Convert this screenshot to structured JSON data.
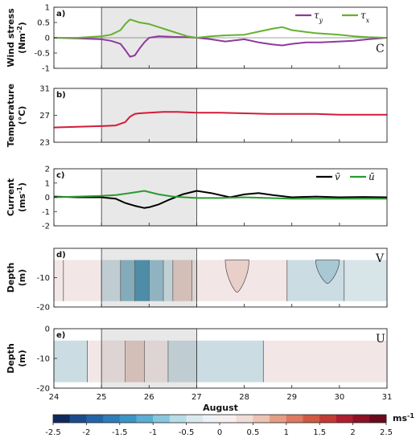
{
  "chart_data": [
    {
      "type": "line",
      "panel_label": "a)",
      "ylabel": "Wind stress",
      "ylabel_unit": "(Nm<sup>-2</sup>)",
      "ylim": [
        -1,
        1
      ],
      "yticks": [
        "1",
        "0.5",
        "0",
        "-0.5",
        "-1"
      ],
      "xlim": [
        24,
        31
      ],
      "legend_position": "top-right",
      "station_label": "C",
      "shaded_x": [
        25,
        27
      ],
      "series": [
        {
          "name": "τ_y",
          "color": "#8e3a9c",
          "x": [
            24,
            24.5,
            25,
            25.2,
            25.4,
            25.5,
            25.6,
            25.7,
            25.8,
            25.9,
            26.0,
            26.2,
            26.5,
            26.8,
            27.0,
            27.3,
            27.6,
            28.0,
            28.3,
            28.6,
            28.8,
            29.0,
            29.3,
            29.6,
            30.0,
            30.3,
            30.6,
            31.0
          ],
          "y": [
            0.0,
            -0.02,
            -0.05,
            -0.1,
            -0.2,
            -0.4,
            -0.62,
            -0.58,
            -0.35,
            -0.15,
            0.0,
            0.05,
            0.03,
            0.02,
            0.0,
            -0.05,
            -0.12,
            -0.05,
            -0.15,
            -0.22,
            -0.25,
            -0.2,
            -0.15,
            -0.15,
            -0.12,
            -0.1,
            -0.05,
            0.0
          ]
        },
        {
          "name": "τ_x",
          "color": "#66b030",
          "x": [
            24,
            24.5,
            25,
            25.2,
            25.4,
            25.5,
            25.6,
            25.8,
            26.0,
            26.2,
            26.4,
            26.6,
            26.8,
            27.0,
            27.3,
            27.6,
            28.0,
            28.3,
            28.6,
            28.8,
            29.0,
            29.5,
            30.0,
            30.3,
            30.6,
            31.0
          ],
          "y": [
            0.0,
            0.0,
            0.05,
            0.1,
            0.25,
            0.45,
            0.6,
            0.5,
            0.45,
            0.35,
            0.25,
            0.15,
            0.05,
            0.0,
            0.05,
            0.08,
            0.1,
            0.2,
            0.3,
            0.35,
            0.25,
            0.15,
            0.1,
            0.05,
            0.02,
            0.0
          ]
        }
      ]
    },
    {
      "type": "line",
      "panel_label": "b)",
      "ylabel": "Temperature",
      "ylabel_unit": "(°C)",
      "ylim": [
        23,
        31
      ],
      "yticks": [
        "31",
        "27",
        "23"
      ],
      "xlim": [
        24,
        31
      ],
      "shaded_x": [
        25,
        27
      ],
      "series": [
        {
          "color": "#d01c3a",
          "x": [
            24,
            24.5,
            25,
            25.3,
            25.5,
            25.6,
            25.7,
            25.8,
            26.0,
            26.3,
            26.6,
            27.0,
            27.5,
            28.0,
            28.5,
            29.0,
            29.5,
            30.0,
            30.5,
            31.0
          ],
          "y": [
            25.2,
            25.3,
            25.4,
            25.5,
            26.0,
            26.8,
            27.2,
            27.3,
            27.4,
            27.5,
            27.5,
            27.4,
            27.4,
            27.3,
            27.2,
            27.2,
            27.2,
            27.1,
            27.1,
            27.1
          ]
        }
      ]
    },
    {
      "type": "line",
      "panel_label": "c)",
      "ylabel": "Current",
      "ylabel_unit": "(ms<sup>-1</sup>)",
      "ylim": [
        -2,
        2
      ],
      "yticks": [
        "2",
        "1",
        "0",
        "-1",
        "-2"
      ],
      "xlim": [
        24,
        31
      ],
      "legend_position": "top-right",
      "shaded_x": [
        25,
        27
      ],
      "series": [
        {
          "name": "v̄",
          "color": "#000000",
          "x": [
            24,
            24.5,
            25,
            25.3,
            25.5,
            25.7,
            25.9,
            26.0,
            26.2,
            26.4,
            26.7,
            27.0,
            27.3,
            27.7,
            28.0,
            28.3,
            28.6,
            29.0,
            29.5,
            30.0,
            30.5,
            31.0
          ],
          "y": [
            0.05,
            0.0,
            0.0,
            -0.1,
            -0.4,
            -0.6,
            -0.75,
            -0.7,
            -0.5,
            -0.2,
            0.2,
            0.45,
            0.3,
            0.0,
            0.2,
            0.3,
            0.15,
            0.0,
            0.05,
            0.0,
            0.02,
            0.0
          ]
        },
        {
          "name": "ū",
          "color": "#2a9a30",
          "x": [
            24,
            24.5,
            25,
            25.3,
            25.6,
            25.9,
            26.2,
            26.5,
            27.0,
            27.5,
            28.0,
            28.5,
            29.0,
            29.5,
            30.0,
            31.0
          ],
          "y": [
            0.0,
            0.05,
            0.1,
            0.15,
            0.3,
            0.45,
            0.2,
            0.05,
            -0.05,
            -0.05,
            0.0,
            -0.05,
            -0.1,
            -0.1,
            -0.1,
            -0.1
          ]
        }
      ]
    },
    {
      "type": "heatmap",
      "panel_label": "d)",
      "ylabel": "Depth",
      "ylabel_unit": "(m)",
      "ylim": [
        -20,
        0
      ],
      "yticks": [
        "-10",
        "-20"
      ],
      "xlim": [
        24,
        31
      ],
      "station_label": "V",
      "shaded_x": [
        25,
        27
      ],
      "depth_range": [
        -18,
        -4
      ],
      "bands": [
        {
          "x0": 24.0,
          "x1": 24.2,
          "color": "#f3e6e6"
        },
        {
          "x0": 24.2,
          "x1": 25.0,
          "color": "#f3e6e6"
        },
        {
          "x0": 25.0,
          "x1": 25.4,
          "color": "#cbdde3"
        },
        {
          "x0": 25.4,
          "x1": 25.7,
          "color": "#7fb1c5"
        },
        {
          "x0": 25.7,
          "x1": 26.0,
          "color": "#3c8aad"
        },
        {
          "x0": 26.0,
          "x1": 26.3,
          "color": "#8fbccd"
        },
        {
          "x0": 26.3,
          "x1": 26.5,
          "color": "#cde0e6"
        },
        {
          "x0": 26.5,
          "x1": 26.9,
          "color": "#e6c9c2"
        },
        {
          "x0": 26.9,
          "x1": 27.0,
          "color": "#f1e3e3"
        },
        {
          "x0": 27.0,
          "x1": 28.9,
          "color": "#f3e6e6"
        },
        {
          "x0": 28.9,
          "x1": 30.1,
          "color": "#cbdde3"
        },
        {
          "x0": 30.1,
          "x1": 31.0,
          "color": "#d7e4e8"
        }
      ],
      "patches": [
        {
          "x0": 27.6,
          "x1": 28.1,
          "y0": -4,
          "y1": -15,
          "color": "#e9cfc9"
        },
        {
          "x0": 29.5,
          "x1": 30.0,
          "y0": -4,
          "y1": -12,
          "color": "#a8c8d4"
        }
      ]
    },
    {
      "type": "heatmap",
      "panel_label": "e)",
      "ylabel": "Depth",
      "ylabel_unit": "(m)",
      "ylim": [
        -20,
        0
      ],
      "yticks": [
        "0",
        "-10",
        "-20"
      ],
      "xlim": [
        24,
        31
      ],
      "station_label": "U",
      "shaded_x": [
        25,
        27
      ],
      "depth_range": [
        -18,
        -4
      ],
      "bands": [
        {
          "x0": 24.0,
          "x1": 24.7,
          "color": "#cbdde3"
        },
        {
          "x0": 24.7,
          "x1": 25.5,
          "color": "#f3e6e6"
        },
        {
          "x0": 25.5,
          "x1": 25.9,
          "color": "#e6c9c2"
        },
        {
          "x0": 25.9,
          "x1": 26.4,
          "color": "#f3e6e6"
        },
        {
          "x0": 26.4,
          "x1": 27.0,
          "color": "#cbdde3"
        },
        {
          "x0": 27.0,
          "x1": 28.4,
          "color": "#cbdde3"
        },
        {
          "x0": 28.4,
          "x1": 31.0,
          "color": "#f3e6e6"
        }
      ],
      "patches": []
    }
  ],
  "xaxis": {
    "label": "August",
    "ticks": [
      "24",
      "25",
      "26",
      "27",
      "28",
      "29",
      "30",
      "31"
    ]
  },
  "colorbar": {
    "unit": "ms<sup>-1</sup>",
    "ticks": [
      "-2.5",
      "-2",
      "-1.5",
      "-1",
      "-0.5",
      "0",
      "0.5",
      "1",
      "1.5",
      "2",
      "2.5"
    ],
    "colors": [
      "#0f2a5e",
      "#1c4b8c",
      "#2464a6",
      "#2f7db6",
      "#3c94c4",
      "#5aaed0",
      "#88c6dd",
      "#b8dce8",
      "#dbe9ef",
      "#eef2f5",
      "#f6efee",
      "#f1dcd6",
      "#ecc3b5",
      "#e59d86",
      "#dc7a5e",
      "#d05a43",
      "#c23a35",
      "#ad1e2e",
      "#8e1126",
      "#6a0a1c"
    ]
  }
}
